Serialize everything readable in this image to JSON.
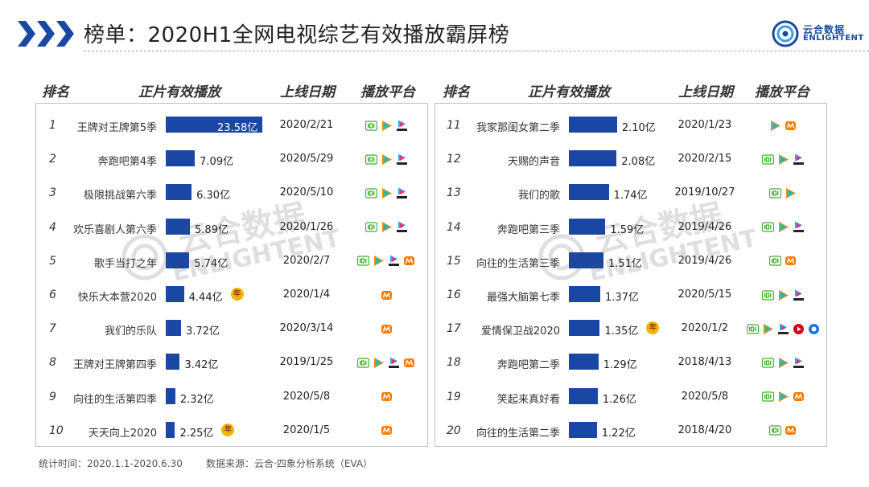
{
  "header": {
    "title": "榜单：2020H1全网电视综艺有效播放霸屏榜",
    "logo_cn": "云合数据",
    "logo_en": "ENLIGHTENT"
  },
  "columns": {
    "rank": "排名",
    "plays": "正片有效播放",
    "date": "上线日期",
    "platform": "播放平台"
  },
  "watermark": {
    "cn": "云合数据",
    "en": "ENLIGHTENT"
  },
  "platform_icons": {
    "iqiyi": "iqiyi-icon",
    "tencent": "tencent-video-icon",
    "youku": "youku-icon",
    "mango": "mango-tv-icon",
    "bilibili": "video-icon",
    "pptv": "pptv-icon"
  },
  "badge_label": "年",
  "colors": {
    "bar": "#1a47a3",
    "title_chevron": "#1a47a3",
    "badge": "#f5b300"
  },
  "rankings_left": [
    {
      "rank": "1",
      "name": "王牌对王牌第5季",
      "plays": "23.58亿",
      "plays_value": 23.58,
      "date": "2020/2/21",
      "platforms": [
        "iqiyi",
        "tencent",
        "youku"
      ],
      "badge": false
    },
    {
      "rank": "2",
      "name": "奔跑吧第4季",
      "plays": "7.09亿",
      "plays_value": 7.09,
      "date": "2020/5/29",
      "platforms": [
        "iqiyi",
        "tencent",
        "youku"
      ],
      "badge": false
    },
    {
      "rank": "3",
      "name": "极限挑战第六季",
      "plays": "6.30亿",
      "plays_value": 6.3,
      "date": "2020/5/10",
      "platforms": [
        "iqiyi",
        "tencent",
        "youku"
      ],
      "badge": false
    },
    {
      "rank": "4",
      "name": "欢乐喜剧人第六季",
      "plays": "5.89亿",
      "plays_value": 5.89,
      "date": "2020/1/26",
      "platforms": [
        "iqiyi",
        "tencent",
        "youku"
      ],
      "badge": false
    },
    {
      "rank": "5",
      "name": "歌手当打之年",
      "plays": "5.74亿",
      "plays_value": 5.74,
      "date": "2020/2/7",
      "platforms": [
        "iqiyi",
        "tencent",
        "youku",
        "mango"
      ],
      "badge": false
    },
    {
      "rank": "6",
      "name": "快乐大本营2020",
      "plays": "4.44亿",
      "plays_value": 4.44,
      "date": "2020/1/4",
      "platforms": [
        "mango"
      ],
      "badge": true
    },
    {
      "rank": "7",
      "name": "我们的乐队",
      "plays": "3.72亿",
      "plays_value": 3.72,
      "date": "2020/3/14",
      "platforms": [
        "mango"
      ],
      "badge": false
    },
    {
      "rank": "8",
      "name": "王牌对王牌第四季",
      "plays": "3.42亿",
      "plays_value": 3.42,
      "date": "2019/1/25",
      "platforms": [
        "iqiyi",
        "tencent",
        "youku",
        "mango"
      ],
      "badge": false
    },
    {
      "rank": "9",
      "name": "向往的生活第四季",
      "plays": "2.32亿",
      "plays_value": 2.32,
      "date": "2020/5/8",
      "platforms": [
        "mango"
      ],
      "badge": false
    },
    {
      "rank": "10",
      "name": "天天向上2020",
      "plays": "2.25亿",
      "plays_value": 2.25,
      "date": "2020/1/5",
      "platforms": [
        "mango"
      ],
      "badge": true
    }
  ],
  "rankings_right": [
    {
      "rank": "11",
      "name": "我家那闺女第二季",
      "plays": "2.10亿",
      "plays_value": 2.1,
      "date": "2020/1/23",
      "platforms": [
        "tencent",
        "mango"
      ],
      "badge": false
    },
    {
      "rank": "12",
      "name": "天赐的声音",
      "plays": "2.08亿",
      "plays_value": 2.08,
      "date": "2020/2/15",
      "platforms": [
        "iqiyi",
        "tencent",
        "youku"
      ],
      "badge": false
    },
    {
      "rank": "13",
      "name": "我们的歌",
      "plays": "1.74亿",
      "plays_value": 1.74,
      "date": "2019/10/27",
      "platforms": [
        "iqiyi",
        "tencent"
      ],
      "badge": false
    },
    {
      "rank": "14",
      "name": "奔跑吧第三季",
      "plays": "1.59亿",
      "plays_value": 1.59,
      "date": "2019/4/26",
      "platforms": [
        "iqiyi",
        "tencent",
        "youku"
      ],
      "badge": false
    },
    {
      "rank": "15",
      "name": "向往的生活第三季",
      "plays": "1.51亿",
      "plays_value": 1.51,
      "date": "2019/4/26",
      "platforms": [
        "iqiyi",
        "mango"
      ],
      "badge": false
    },
    {
      "rank": "16",
      "name": "最强大脑第七季",
      "plays": "1.37亿",
      "plays_value": 1.37,
      "date": "2020/5/15",
      "platforms": [
        "iqiyi",
        "tencent",
        "youku"
      ],
      "badge": false
    },
    {
      "rank": "17",
      "name": "爱情保卫战2020",
      "plays": "1.35亿",
      "plays_value": 1.35,
      "date": "2020/1/2",
      "platforms": [
        "iqiyi",
        "tencent",
        "youku",
        "bilibili",
        "pptv"
      ],
      "badge": true
    },
    {
      "rank": "18",
      "name": "奔跑吧第二季",
      "plays": "1.29亿",
      "plays_value": 1.29,
      "date": "2018/4/13",
      "platforms": [
        "iqiyi",
        "tencent",
        "youku"
      ],
      "badge": false
    },
    {
      "rank": "19",
      "name": "笑起来真好看",
      "plays": "1.26亿",
      "plays_value": 1.26,
      "date": "2020/5/8",
      "platforms": [
        "iqiyi",
        "tencent",
        "mango"
      ],
      "badge": false
    },
    {
      "rank": "20",
      "name": "向往的生活第二季",
      "plays": "1.22亿",
      "plays_value": 1.22,
      "date": "2018/4/20",
      "platforms": [
        "iqiyi",
        "mango"
      ],
      "badge": false
    }
  ],
  "footer": {
    "period": "统计时间：2020.1.1-2020.6.30",
    "source": "数据来源：云合·四象分析系统（EVA）"
  }
}
